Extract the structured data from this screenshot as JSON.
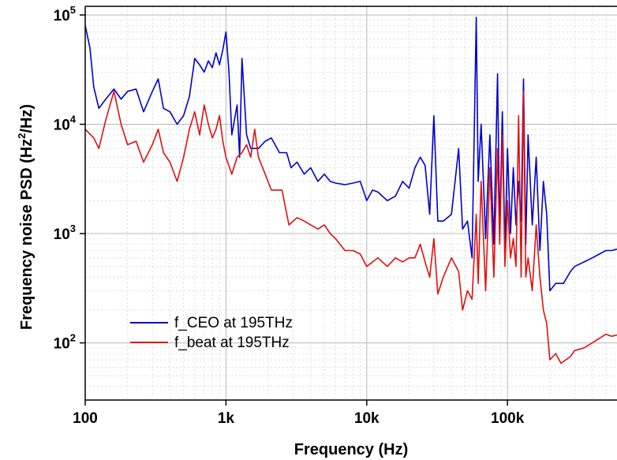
{
  "chart_data": {
    "type": "line",
    "title": "",
    "xlabel": "Frequency  (Hz)",
    "ylabel": "Frequency noise PSD (Hz²/Hz)",
    "x_scale": "log",
    "y_scale": "log",
    "xlim": [
      100,
      600000
    ],
    "ylim": [
      30,
      120000
    ],
    "grid": true,
    "legend_position": "bottom-left",
    "x_ticks": [
      {
        "value": 100,
        "label": "100"
      },
      {
        "value": 1000,
        "label": "1k"
      },
      {
        "value": 10000,
        "label": "10k"
      },
      {
        "value": 100000,
        "label": "100k"
      }
    ],
    "y_ticks": [
      {
        "value": 100,
        "base": "10",
        "exp": "2"
      },
      {
        "value": 1000,
        "base": "10",
        "exp": "3"
      },
      {
        "value": 10000,
        "base": "10",
        "exp": "4"
      },
      {
        "value": 100000,
        "base": "10",
        "exp": "5"
      }
    ],
    "series": [
      {
        "name": "f_CEO at 195THz",
        "color": "#0000cc",
        "points": [
          [
            100,
            80000
          ],
          [
            108,
            50000
          ],
          [
            115,
            22000
          ],
          [
            125,
            14000
          ],
          [
            140,
            17000
          ],
          [
            160,
            21000
          ],
          [
            180,
            17000
          ],
          [
            200,
            20000
          ],
          [
            230,
            21000
          ],
          [
            260,
            13000
          ],
          [
            300,
            20000
          ],
          [
            330,
            26000
          ],
          [
            360,
            14000
          ],
          [
            400,
            13000
          ],
          [
            450,
            10000
          ],
          [
            500,
            12000
          ],
          [
            550,
            18000
          ],
          [
            600,
            40000
          ],
          [
            650,
            35000
          ],
          [
            700,
            30000
          ],
          [
            750,
            38000
          ],
          [
            800,
            33000
          ],
          [
            850,
            45000
          ],
          [
            900,
            35000
          ],
          [
            950,
            48000
          ],
          [
            1000,
            70000
          ],
          [
            1050,
            30000
          ],
          [
            1100,
            8000
          ],
          [
            1200,
            15000
          ],
          [
            1250,
            5000
          ],
          [
            1300,
            40000
          ],
          [
            1400,
            8000
          ],
          [
            1500,
            6000
          ],
          [
            1700,
            6000
          ],
          [
            1900,
            7000
          ],
          [
            2100,
            7500
          ],
          [
            2400,
            5500
          ],
          [
            2700,
            5500
          ],
          [
            2900,
            4000
          ],
          [
            3200,
            4500
          ],
          [
            3600,
            3500
          ],
          [
            4000,
            4000
          ],
          [
            4500,
            3000
          ],
          [
            5000,
            3500
          ],
          [
            5500,
            3000
          ],
          [
            6000,
            2900
          ],
          [
            7000,
            2800
          ],
          [
            8000,
            2900
          ],
          [
            9000,
            3000
          ],
          [
            10000,
            2000
          ],
          [
            11000,
            2500
          ],
          [
            12000,
            2400
          ],
          [
            14000,
            2000
          ],
          [
            16000,
            2200
          ],
          [
            18000,
            3000
          ],
          [
            20000,
            2600
          ],
          [
            22000,
            4000
          ],
          [
            24000,
            5000
          ],
          [
            26000,
            4200
          ],
          [
            28000,
            1500
          ],
          [
            30000,
            12000
          ],
          [
            32000,
            1300
          ],
          [
            35000,
            1300
          ],
          [
            40000,
            1500
          ],
          [
            45000,
            6000
          ],
          [
            48000,
            1100
          ],
          [
            52000,
            1300
          ],
          [
            56000,
            600
          ],
          [
            60000,
            95000
          ],
          [
            62000,
            3000
          ],
          [
            65000,
            10000
          ],
          [
            70000,
            900
          ],
          [
            75000,
            8000
          ],
          [
            80000,
            800
          ],
          [
            85000,
            29000
          ],
          [
            88000,
            1000
          ],
          [
            92000,
            13000
          ],
          [
            96000,
            700
          ],
          [
            100000,
            6000
          ],
          [
            105000,
            1000
          ],
          [
            110000,
            4000
          ],
          [
            115000,
            1200
          ],
          [
            120000,
            3000
          ],
          [
            125000,
            1300
          ],
          [
            130000,
            26000
          ],
          [
            135000,
            800
          ],
          [
            140000,
            8000
          ],
          [
            150000,
            1200
          ],
          [
            160000,
            5000
          ],
          [
            170000,
            700
          ],
          [
            180000,
            3000
          ],
          [
            190000,
            1500
          ],
          [
            200000,
            300
          ],
          [
            220000,
            350
          ],
          [
            250000,
            350
          ],
          [
            280000,
            450
          ],
          [
            300000,
            500
          ],
          [
            350000,
            550
          ],
          [
            400000,
            600
          ],
          [
            450000,
            650
          ],
          [
            500000,
            700
          ],
          [
            550000,
            700
          ],
          [
            600000,
            720
          ]
        ]
      },
      {
        "name": "f_beat at 195THz",
        "color": "#dd1111",
        "points": [
          [
            100,
            9000
          ],
          [
            115,
            7500
          ],
          [
            125,
            6000
          ],
          [
            140,
            11000
          ],
          [
            160,
            20000
          ],
          [
            180,
            10000
          ],
          [
            200,
            6500
          ],
          [
            230,
            7000
          ],
          [
            260,
            4500
          ],
          [
            300,
            6500
          ],
          [
            330,
            9000
          ],
          [
            360,
            5500
          ],
          [
            400,
            4500
          ],
          [
            450,
            3000
          ],
          [
            500,
            5000
          ],
          [
            550,
            9000
          ],
          [
            600,
            13000
          ],
          [
            650,
            8000
          ],
          [
            700,
            15000
          ],
          [
            750,
            10000
          ],
          [
            800,
            7500
          ],
          [
            850,
            9000
          ],
          [
            900,
            12000
          ],
          [
            950,
            7000
          ],
          [
            1000,
            5000
          ],
          [
            1100,
            3500
          ],
          [
            1200,
            5000
          ],
          [
            1300,
            5500
          ],
          [
            1400,
            6500
          ],
          [
            1500,
            5000
          ],
          [
            1600,
            9000
          ],
          [
            1700,
            5000
          ],
          [
            1900,
            3500
          ],
          [
            2100,
            2500
          ],
          [
            2500,
            2500
          ],
          [
            2800,
            1200
          ],
          [
            3200,
            1400
          ],
          [
            3600,
            1300
          ],
          [
            4000,
            1200
          ],
          [
            4500,
            1100
          ],
          [
            5000,
            1200
          ],
          [
            5500,
            1000
          ],
          [
            6000,
            900
          ],
          [
            7000,
            700
          ],
          [
            8000,
            700
          ],
          [
            9000,
            650
          ],
          [
            10000,
            500
          ],
          [
            11000,
            550
          ],
          [
            12000,
            600
          ],
          [
            14000,
            500
          ],
          [
            16000,
            600
          ],
          [
            18000,
            550
          ],
          [
            20000,
            600
          ],
          [
            22000,
            600
          ],
          [
            24000,
            800
          ],
          [
            26000,
            550
          ],
          [
            28000,
            400
          ],
          [
            30000,
            900
          ],
          [
            32000,
            280
          ],
          [
            35000,
            400
          ],
          [
            40000,
            600
          ],
          [
            45000,
            450
          ],
          [
            48000,
            200
          ],
          [
            52000,
            300
          ],
          [
            56000,
            250
          ],
          [
            60000,
            1500
          ],
          [
            62000,
            350
          ],
          [
            65000,
            3000
          ],
          [
            70000,
            300
          ],
          [
            75000,
            4000
          ],
          [
            80000,
            400
          ],
          [
            85000,
            6000
          ],
          [
            88000,
            800
          ],
          [
            92000,
            8000
          ],
          [
            96000,
            500
          ],
          [
            100000,
            2000
          ],
          [
            105000,
            600
          ],
          [
            110000,
            900
          ],
          [
            115000,
            500
          ],
          [
            120000,
            12000
          ],
          [
            125000,
            400
          ],
          [
            130000,
            20000
          ],
          [
            135000,
            400
          ],
          [
            140000,
            600
          ],
          [
            150000,
            300
          ],
          [
            160000,
            1200
          ],
          [
            170000,
            400
          ],
          [
            180000,
            200
          ],
          [
            190000,
            150
          ],
          [
            200000,
            70
          ],
          [
            220000,
            80
          ],
          [
            240000,
            65
          ],
          [
            260000,
            70
          ],
          [
            280000,
            75
          ],
          [
            300000,
            85
          ],
          [
            350000,
            90
          ],
          [
            400000,
            100
          ],
          [
            450000,
            110
          ],
          [
            500000,
            120
          ],
          [
            550000,
            115
          ],
          [
            600000,
            118
          ]
        ]
      }
    ]
  }
}
